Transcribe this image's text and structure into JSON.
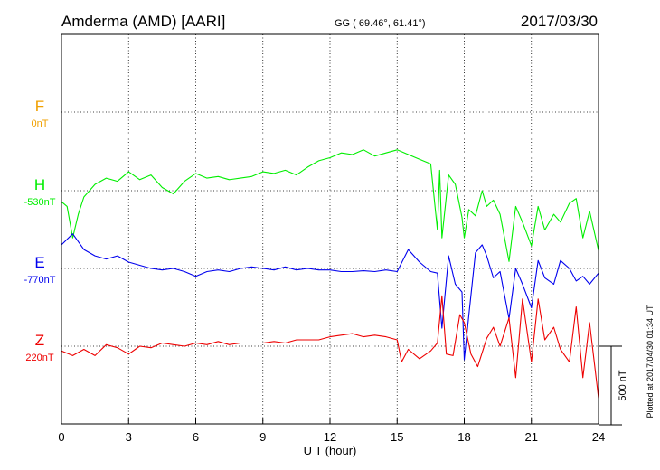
{
  "header": {
    "station": "Amderma (AMD)  [AARI]",
    "coords": "GG ( 69.46°,  61.41°)",
    "date": "2017/03/30"
  },
  "plotted_note": "Plotted at 2017/04/30 01:34 UT",
  "chart_data": {
    "type": "line",
    "xlabel": "U T (hour)",
    "xlim": [
      0,
      24
    ],
    "xticks": [
      "0",
      "3",
      "6",
      "9",
      "12",
      "15",
      "18",
      "21",
      "24"
    ],
    "scale_bar": {
      "label": "500 nT",
      "value_nT": 500
    },
    "series": [
      {
        "name": "F",
        "baseline_label": "0nT",
        "color": "#f0a000",
        "points": []
      },
      {
        "name": "H",
        "baseline_label": "-530nT",
        "color": "#00ee00",
        "points": [
          [
            0,
            -70
          ],
          [
            0.25,
            -100
          ],
          [
            0.5,
            -300
          ],
          [
            0.75,
            -150
          ],
          [
            1,
            -40
          ],
          [
            1.5,
            40
          ],
          [
            2,
            80
          ],
          [
            2.5,
            60
          ],
          [
            3,
            120
          ],
          [
            3.5,
            70
          ],
          [
            4,
            100
          ],
          [
            4.5,
            20
          ],
          [
            5,
            -20
          ],
          [
            5.5,
            60
          ],
          [
            6,
            110
          ],
          [
            6.5,
            80
          ],
          [
            7,
            90
          ],
          [
            7.5,
            70
          ],
          [
            8,
            80
          ],
          [
            8.5,
            90
          ],
          [
            9,
            120
          ],
          [
            9.5,
            110
          ],
          [
            10,
            130
          ],
          [
            10.5,
            100
          ],
          [
            11,
            150
          ],
          [
            11.5,
            190
          ],
          [
            12,
            210
          ],
          [
            12.5,
            240
          ],
          [
            13,
            230
          ],
          [
            13.5,
            260
          ],
          [
            14,
            220
          ],
          [
            14.5,
            240
          ],
          [
            15,
            260
          ],
          [
            15.5,
            230
          ],
          [
            16,
            200
          ],
          [
            16.5,
            170
          ],
          [
            16.8,
            -250
          ],
          [
            16.9,
            130
          ],
          [
            17,
            -300
          ],
          [
            17.3,
            100
          ],
          [
            17.6,
            40
          ],
          [
            17.9,
            -170
          ],
          [
            18,
            -300
          ],
          [
            18.2,
            -120
          ],
          [
            18.5,
            -160
          ],
          [
            18.8,
            0
          ],
          [
            19,
            -100
          ],
          [
            19.3,
            -60
          ],
          [
            19.6,
            -150
          ],
          [
            20,
            -450
          ],
          [
            20.3,
            -100
          ],
          [
            20.6,
            -200
          ],
          [
            21,
            -350
          ],
          [
            21.3,
            -100
          ],
          [
            21.6,
            -250
          ],
          [
            22,
            -150
          ],
          [
            22.3,
            -200
          ],
          [
            22.7,
            -80
          ],
          [
            23,
            -50
          ],
          [
            23.3,
            -300
          ],
          [
            23.6,
            -130
          ],
          [
            24,
            -380
          ]
        ]
      },
      {
        "name": "E",
        "baseline_label": "-770nT",
        "color": "#0000ee",
        "points": [
          [
            0,
            150
          ],
          [
            0.5,
            220
          ],
          [
            1,
            120
          ],
          [
            1.5,
            80
          ],
          [
            2,
            60
          ],
          [
            2.5,
            80
          ],
          [
            3,
            40
          ],
          [
            3.5,
            20
          ],
          [
            4,
            0
          ],
          [
            4.5,
            -10
          ],
          [
            5,
            0
          ],
          [
            5.5,
            -20
          ],
          [
            6,
            -50
          ],
          [
            6.5,
            -20
          ],
          [
            7,
            -10
          ],
          [
            7.5,
            -20
          ],
          [
            8,
            0
          ],
          [
            8.5,
            10
          ],
          [
            9,
            0
          ],
          [
            9.5,
            -10
          ],
          [
            10,
            10
          ],
          [
            10.5,
            -10
          ],
          [
            11,
            0
          ],
          [
            11.5,
            -10
          ],
          [
            12,
            -10
          ],
          [
            12.5,
            -20
          ],
          [
            13,
            -20
          ],
          [
            13.5,
            -15
          ],
          [
            14,
            -20
          ],
          [
            14.5,
            -10
          ],
          [
            15,
            -20
          ],
          [
            15.5,
            120
          ],
          [
            16,
            40
          ],
          [
            16.5,
            -20
          ],
          [
            16.8,
            -30
          ],
          [
            17,
            -380
          ],
          [
            17.3,
            80
          ],
          [
            17.6,
            -100
          ],
          [
            17.9,
            -150
          ],
          [
            18,
            -580
          ],
          [
            18.2,
            -300
          ],
          [
            18.5,
            100
          ],
          [
            18.8,
            150
          ],
          [
            19,
            80
          ],
          [
            19.3,
            -60
          ],
          [
            19.6,
            -20
          ],
          [
            20,
            -320
          ],
          [
            20.3,
            0
          ],
          [
            20.6,
            -100
          ],
          [
            21,
            -250
          ],
          [
            21.3,
            50
          ],
          [
            21.6,
            -60
          ],
          [
            22,
            -100
          ],
          [
            22.3,
            50
          ],
          [
            22.7,
            0
          ],
          [
            23,
            -80
          ],
          [
            23.3,
            -50
          ],
          [
            23.6,
            -100
          ],
          [
            24,
            -30
          ]
        ]
      },
      {
        "name": "Z",
        "baseline_label": "220nT",
        "color": "#ee0000",
        "points": [
          [
            0,
            -30
          ],
          [
            0.5,
            -60
          ],
          [
            1,
            -20
          ],
          [
            1.5,
            -60
          ],
          [
            2,
            10
          ],
          [
            2.5,
            -10
          ],
          [
            3,
            -50
          ],
          [
            3.5,
            0
          ],
          [
            4,
            -10
          ],
          [
            4.5,
            20
          ],
          [
            5,
            10
          ],
          [
            5.5,
            0
          ],
          [
            6,
            20
          ],
          [
            6.5,
            10
          ],
          [
            7,
            30
          ],
          [
            7.5,
            10
          ],
          [
            8,
            20
          ],
          [
            8.5,
            20
          ],
          [
            9,
            20
          ],
          [
            9.5,
            30
          ],
          [
            10,
            20
          ],
          [
            10.5,
            40
          ],
          [
            11,
            40
          ],
          [
            11.5,
            40
          ],
          [
            12,
            60
          ],
          [
            12.5,
            70
          ],
          [
            13,
            80
          ],
          [
            13.5,
            60
          ],
          [
            14,
            70
          ],
          [
            14.5,
            60
          ],
          [
            15,
            40
          ],
          [
            15.2,
            -100
          ],
          [
            15.5,
            -20
          ],
          [
            16,
            -80
          ],
          [
            16.5,
            -30
          ],
          [
            16.8,
            20
          ],
          [
            17,
            320
          ],
          [
            17.2,
            -50
          ],
          [
            17.5,
            -60
          ],
          [
            17.8,
            200
          ],
          [
            18,
            150
          ],
          [
            18.3,
            -50
          ],
          [
            18.6,
            -130
          ],
          [
            19,
            50
          ],
          [
            19.3,
            120
          ],
          [
            19.6,
            0
          ],
          [
            20,
            180
          ],
          [
            20.3,
            -200
          ],
          [
            20.6,
            300
          ],
          [
            21,
            -100
          ],
          [
            21.3,
            300
          ],
          [
            21.6,
            40
          ],
          [
            22,
            120
          ],
          [
            22.3,
            -20
          ],
          [
            22.7,
            -100
          ],
          [
            23,
            250
          ],
          [
            23.3,
            -200
          ],
          [
            23.6,
            150
          ],
          [
            24,
            -330
          ]
        ]
      }
    ]
  }
}
